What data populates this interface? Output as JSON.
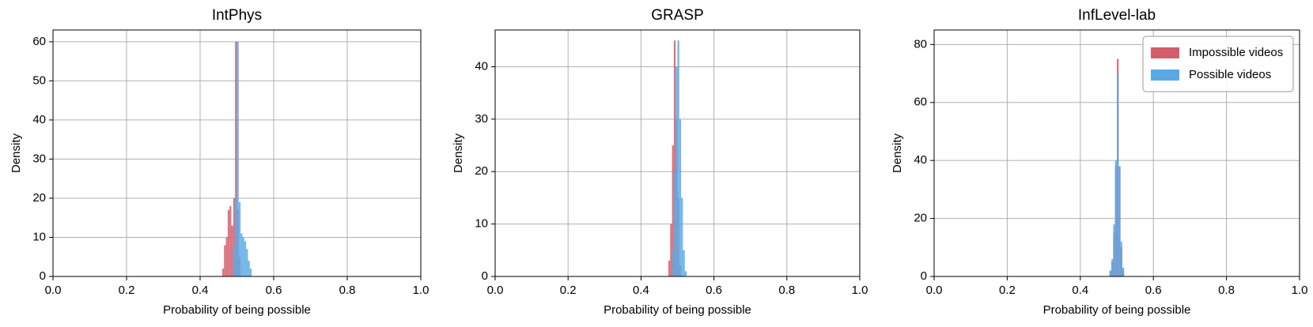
{
  "chart_data": [
    {
      "type": "histogram",
      "title": "IntPhys",
      "xlabel": "Probability of being possible",
      "ylabel": "Density",
      "xlim": [
        0,
        1
      ],
      "xticks": [
        {
          "value": 0,
          "label": "0.0"
        },
        {
          "value": 0.2,
          "label": "0.2"
        },
        {
          "value": 0.4,
          "label": "0.4"
        },
        {
          "value": 0.6,
          "label": "0.6"
        },
        {
          "value": 0.8,
          "label": "0.8"
        },
        {
          "value": 1,
          "label": "1.0"
        }
      ],
      "ylim": [
        0,
        63
      ],
      "yticks": [
        0,
        10,
        20,
        30,
        40,
        50,
        60
      ],
      "grid": true,
      "series": [
        {
          "color": "#d45d6b",
          "bins": [
            0.46,
            0.465,
            0.47,
            0.475,
            0.48,
            0.485,
            0.49,
            0.495,
            0.5,
            0.505,
            0.51
          ],
          "values": [
            2,
            8,
            10,
            17,
            18,
            13,
            20,
            60,
            17,
            5
          ]
        },
        {
          "color": "#5aa9e6",
          "bins": [
            0.49,
            0.495,
            0.5,
            0.505,
            0.51,
            0.515,
            0.52,
            0.525,
            0.53,
            0.535,
            0.54
          ],
          "values": [
            8,
            20,
            60,
            19,
            11,
            10,
            9,
            7,
            4,
            2
          ]
        }
      ]
    },
    {
      "type": "histogram",
      "title": "GRASP",
      "xlabel": "Probability of being possible",
      "ylabel": "Density",
      "xlim": [
        0,
        1
      ],
      "xticks": [
        {
          "value": 0,
          "label": "0.0"
        },
        {
          "value": 0.2,
          "label": "0.2"
        },
        {
          "value": 0.4,
          "label": "0.4"
        },
        {
          "value": 0.6,
          "label": "0.6"
        },
        {
          "value": 0.8,
          "label": "0.8"
        },
        {
          "value": 1,
          "label": "1.0"
        }
      ],
      "ylim": [
        0,
        47
      ],
      "yticks": [
        0,
        10,
        20,
        30,
        40
      ],
      "grid": true,
      "series": [
        {
          "color": "#d45d6b",
          "bins": [
            0.475,
            0.48,
            0.485,
            0.49,
            0.495,
            0.5,
            0.505,
            0.51
          ],
          "values": [
            3,
            10,
            25,
            45,
            30,
            15,
            2
          ]
        },
        {
          "color": "#5aa9e6",
          "bins": [
            0.485,
            0.49,
            0.495,
            0.5,
            0.505,
            0.51,
            0.515,
            0.52,
            0.525
          ],
          "values": [
            5,
            20,
            40,
            45,
            30,
            15,
            5,
            1
          ]
        }
      ]
    },
    {
      "type": "histogram",
      "title": "InfLevel-lab",
      "xlabel": "Probability of being possible",
      "ylabel": "Density",
      "xlim": [
        0,
        1
      ],
      "xticks": [
        {
          "value": 0,
          "label": "0.0"
        },
        {
          "value": 0.2,
          "label": "0.2"
        },
        {
          "value": 0.4,
          "label": "0.4"
        },
        {
          "value": 0.6,
          "label": "0.6"
        },
        {
          "value": 0.8,
          "label": "0.8"
        },
        {
          "value": 1,
          "label": "1.0"
        }
      ],
      "ylim": [
        0,
        85
      ],
      "yticks": [
        0,
        20,
        40,
        60,
        80
      ],
      "grid": true,
      "legend": "upper right",
      "series": [
        {
          "name": "Impossible videos",
          "color": "#d45d6b",
          "bins": [
            0.48,
            0.485,
            0.49,
            0.495,
            0.5,
            0.505,
            0.51,
            0.515,
            0.52
          ],
          "values": [
            2,
            5,
            15,
            38,
            75,
            38,
            10,
            2
          ]
        },
        {
          "name": "Possible videos",
          "color": "#5aa9e6",
          "bins": [
            0.48,
            0.485,
            0.49,
            0.495,
            0.5,
            0.505,
            0.51,
            0.515,
            0.52
          ],
          "values": [
            2,
            6,
            18,
            40,
            70,
            38,
            12,
            3
          ]
        }
      ]
    }
  ]
}
